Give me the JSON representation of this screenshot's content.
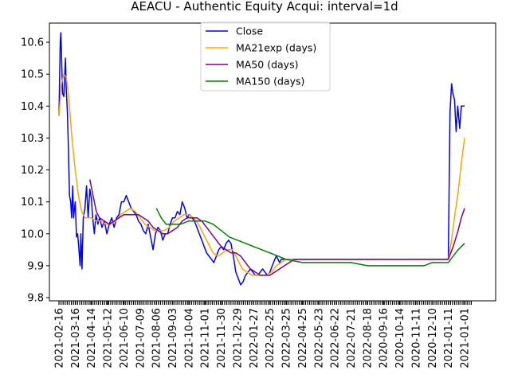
{
  "chart_data": {
    "type": "line",
    "title": "AEACU - Authentic Equity Acqui: interval=1d",
    "xlabel": "",
    "ylabel": "",
    "ylim": [
      9.79,
      10.66
    ],
    "yticks": [
      "9.8",
      "9.9",
      "10.0",
      "10.1",
      "10.2",
      "10.3",
      "10.4",
      "10.5",
      "10.6"
    ],
    "xtick_labels": [
      "2021-02-16",
      "2021-03-16",
      "2021-04-14",
      "2021-05-12",
      "2021-06-10",
      "2021-07-09",
      "2021-08-06",
      "2021-09-03",
      "2021-10-04",
      "2021-11-01",
      "2021-11-30",
      "2021-12-29",
      "2022-01-27",
      "2022-02-25",
      "2022-03-25",
      "2022-04-25",
      "2022-05-23",
      "2022-06-22",
      "2022-07-21",
      "2022-08-18",
      "2020-09-16",
      "2020-10-14",
      "2020-11-11",
      "2020-12-10",
      "2021-01-11",
      "2021-01-01"
    ],
    "x_index_range": [
      0,
      26.1
    ],
    "grid": false,
    "legend_position": "upper-center",
    "series": [
      {
        "name": "Close",
        "color": "#0000ff",
        "points": [
          [
            0,
            10.37
          ],
          [
            0.08,
            10.6
          ],
          [
            0.12,
            10.63
          ],
          [
            0.16,
            10.55
          ],
          [
            0.22,
            10.44
          ],
          [
            0.3,
            10.43
          ],
          [
            0.36,
            10.5
          ],
          [
            0.4,
            10.55
          ],
          [
            0.45,
            10.45
          ],
          [
            0.52,
            10.38
          ],
          [
            0.58,
            10.27
          ],
          [
            0.65,
            10.12
          ],
          [
            0.72,
            10.1
          ],
          [
            0.78,
            10.05
          ],
          [
            0.85,
            10.15
          ],
          [
            0.9,
            10.05
          ],
          [
            1.0,
            10.1
          ],
          [
            1.08,
            9.99
          ],
          [
            1.15,
            10.0
          ],
          [
            1.22,
            9.96
          ],
          [
            1.3,
            9.9
          ],
          [
            1.35,
            10.0
          ],
          [
            1.42,
            9.89
          ],
          [
            1.5,
            10.05
          ],
          [
            1.6,
            10.08
          ],
          [
            1.7,
            10.15
          ],
          [
            1.8,
            10.05
          ],
          [
            1.9,
            10.14
          ],
          [
            2.0,
            10.11
          ],
          [
            2.08,
            10.05
          ],
          [
            2.18,
            10.0
          ],
          [
            2.28,
            10.06
          ],
          [
            2.4,
            10.03
          ],
          [
            2.5,
            10.05
          ],
          [
            2.65,
            10.02
          ],
          [
            2.8,
            10.04
          ],
          [
            2.95,
            10.0
          ],
          [
            3.1,
            10.03
          ],
          [
            3.25,
            10.05
          ],
          [
            3.4,
            10.02
          ],
          [
            3.55,
            10.05
          ],
          [
            3.7,
            10.06
          ],
          [
            3.85,
            10.1
          ],
          [
            4.0,
            10.1
          ],
          [
            4.15,
            10.12
          ],
          [
            4.3,
            10.1
          ],
          [
            4.45,
            10.08
          ],
          [
            4.6,
            10.07
          ],
          [
            4.75,
            10.06
          ],
          [
            4.9,
            10.04
          ],
          [
            5.05,
            10.03
          ],
          [
            5.2,
            10.01
          ],
          [
            5.35,
            10.0
          ],
          [
            5.5,
            10.03
          ],
          [
            5.65,
            9.99
          ],
          [
            5.8,
            9.95
          ],
          [
            5.95,
            10.0
          ],
          [
            6.1,
            10.02
          ],
          [
            6.25,
            10.01
          ],
          [
            6.4,
            9.98
          ],
          [
            6.55,
            10.0
          ],
          [
            6.7,
            10.0
          ],
          [
            6.85,
            10.03
          ],
          [
            7.0,
            10.05
          ],
          [
            7.15,
            10.05
          ],
          [
            7.3,
            10.07
          ],
          [
            7.45,
            10.06
          ],
          [
            7.6,
            10.1
          ],
          [
            7.75,
            10.08
          ],
          [
            7.9,
            10.05
          ],
          [
            8.05,
            10.06
          ],
          [
            8.2,
            10.05
          ],
          [
            8.35,
            10.04
          ],
          [
            8.5,
            10.02
          ],
          [
            8.65,
            10.0
          ],
          [
            8.8,
            9.98
          ],
          [
            8.95,
            9.96
          ],
          [
            9.1,
            9.94
          ],
          [
            9.25,
            9.93
          ],
          [
            9.4,
            9.92
          ],
          [
            9.55,
            9.91
          ],
          [
            9.7,
            9.93
          ],
          [
            9.85,
            9.95
          ],
          [
            10.0,
            9.96
          ],
          [
            10.15,
            9.95
          ],
          [
            10.3,
            9.97
          ],
          [
            10.45,
            9.98
          ],
          [
            10.6,
            9.97
          ],
          [
            10.75,
            9.93
          ],
          [
            10.9,
            9.88
          ],
          [
            11.05,
            9.86
          ],
          [
            11.2,
            9.84
          ],
          [
            11.35,
            9.85
          ],
          [
            11.5,
            9.87
          ],
          [
            11.65,
            9.88
          ],
          [
            11.8,
            9.89
          ],
          [
            11.95,
            9.88
          ],
          [
            12.1,
            9.87
          ],
          [
            12.25,
            9.87
          ],
          [
            12.4,
            9.88
          ],
          [
            12.55,
            9.89
          ],
          [
            12.7,
            9.88
          ],
          [
            12.85,
            9.87
          ],
          [
            13.0,
            9.88
          ],
          [
            13.15,
            9.9
          ],
          [
            13.3,
            9.92
          ],
          [
            13.4,
            9.93
          ],
          [
            13.5,
            9.92
          ],
          [
            13.6,
            9.91
          ],
          [
            13.7,
            9.92
          ],
          [
            14.0,
            9.92
          ],
          [
            15.0,
            9.92
          ],
          [
            16.0,
            9.92
          ],
          [
            17.0,
            9.92
          ],
          [
            18.0,
            9.92
          ],
          [
            19.0,
            9.92
          ],
          [
            20.0,
            9.92
          ],
          [
            21.0,
            9.92
          ],
          [
            22.0,
            9.92
          ],
          [
            23.0,
            9.92
          ],
          [
            24.0,
            9.92
          ],
          [
            24.1,
            10.38
          ],
          [
            24.2,
            10.47
          ],
          [
            24.28,
            10.44
          ],
          [
            24.38,
            10.42
          ],
          [
            24.48,
            10.32
          ],
          [
            24.58,
            10.4
          ],
          [
            24.7,
            10.33
          ],
          [
            24.8,
            10.4
          ],
          [
            25.0,
            10.4
          ]
        ]
      },
      {
        "name": "MA21exp (days)",
        "color": "#ffa500",
        "points": [
          [
            0,
            10.37
          ],
          [
            0.15,
            10.47
          ],
          [
            0.3,
            10.5
          ],
          [
            0.45,
            10.49
          ],
          [
            0.6,
            10.43
          ],
          [
            0.8,
            10.3
          ],
          [
            1.0,
            10.2
          ],
          [
            1.2,
            10.12
          ],
          [
            1.4,
            10.07
          ],
          [
            1.6,
            10.05
          ],
          [
            1.8,
            10.05
          ],
          [
            2.0,
            10.05
          ],
          [
            2.3,
            10.04
          ],
          [
            2.6,
            10.04
          ],
          [
            2.9,
            10.03
          ],
          [
            3.2,
            10.03
          ],
          [
            3.5,
            10.04
          ],
          [
            3.8,
            10.06
          ],
          [
            4.1,
            10.07
          ],
          [
            4.4,
            10.08
          ],
          [
            4.7,
            10.07
          ],
          [
            5.0,
            10.05
          ],
          [
            5.3,
            10.03
          ],
          [
            5.6,
            10.02
          ],
          [
            5.9,
            10.01
          ],
          [
            6.2,
            10.01
          ],
          [
            6.5,
            10.01
          ],
          [
            6.8,
            10.02
          ],
          [
            7.1,
            10.04
          ],
          [
            7.4,
            10.05
          ],
          [
            7.7,
            10.06
          ],
          [
            8.0,
            10.06
          ],
          [
            8.3,
            10.05
          ],
          [
            8.6,
            10.03
          ],
          [
            8.9,
            10.0
          ],
          [
            9.2,
            9.97
          ],
          [
            9.5,
            9.94
          ],
          [
            9.8,
            9.93
          ],
          [
            10.1,
            9.94
          ],
          [
            10.4,
            9.95
          ],
          [
            10.7,
            9.95
          ],
          [
            11.0,
            9.92
          ],
          [
            11.3,
            9.89
          ],
          [
            11.6,
            9.88
          ],
          [
            11.9,
            9.87
          ],
          [
            12.2,
            9.87
          ],
          [
            12.5,
            9.87
          ],
          [
            12.8,
            9.87
          ],
          [
            13.1,
            9.88
          ],
          [
            13.4,
            9.9
          ],
          [
            13.7,
            9.91
          ],
          [
            14.0,
            9.92
          ],
          [
            15.0,
            9.92
          ],
          [
            16.0,
            9.92
          ],
          [
            17.0,
            9.92
          ],
          [
            18.0,
            9.92
          ],
          [
            19.0,
            9.92
          ],
          [
            20.0,
            9.92
          ],
          [
            21.0,
            9.92
          ],
          [
            22.0,
            9.92
          ],
          [
            23.0,
            9.92
          ],
          [
            24.0,
            9.92
          ],
          [
            24.2,
            9.98
          ],
          [
            24.4,
            10.06
          ],
          [
            24.6,
            10.13
          ],
          [
            24.8,
            10.22
          ],
          [
            25.0,
            10.3
          ]
        ]
      },
      {
        "name": "MA50 (days)",
        "color": "#800080",
        "points": [
          [
            1.9,
            10.17
          ],
          [
            2.1,
            10.12
          ],
          [
            2.3,
            10.07
          ],
          [
            2.5,
            10.05
          ],
          [
            2.8,
            10.04
          ],
          [
            3.1,
            10.03
          ],
          [
            3.4,
            10.04
          ],
          [
            3.7,
            10.05
          ],
          [
            4.0,
            10.06
          ],
          [
            4.3,
            10.06
          ],
          [
            4.6,
            10.06
          ],
          [
            4.9,
            10.06
          ],
          [
            5.2,
            10.05
          ],
          [
            5.5,
            10.04
          ],
          [
            5.8,
            10.02
          ],
          [
            6.1,
            10.01
          ],
          [
            6.4,
            10.0
          ],
          [
            6.7,
            10.0
          ],
          [
            7.0,
            10.01
          ],
          [
            7.3,
            10.02
          ],
          [
            7.6,
            10.04
          ],
          [
            7.9,
            10.05
          ],
          [
            8.2,
            10.05
          ],
          [
            8.5,
            10.05
          ],
          [
            8.8,
            10.04
          ],
          [
            9.1,
            10.02
          ],
          [
            9.4,
            10.0
          ],
          [
            9.7,
            9.98
          ],
          [
            10.0,
            9.96
          ],
          [
            10.3,
            9.95
          ],
          [
            10.6,
            9.94
          ],
          [
            10.9,
            9.94
          ],
          [
            11.2,
            9.93
          ],
          [
            11.5,
            9.91
          ],
          [
            11.8,
            9.89
          ],
          [
            12.1,
            9.88
          ],
          [
            12.4,
            9.87
          ],
          [
            12.7,
            9.87
          ],
          [
            13.0,
            9.87
          ],
          [
            13.3,
            9.88
          ],
          [
            13.6,
            9.89
          ],
          [
            13.9,
            9.9
          ],
          [
            14.2,
            9.91
          ],
          [
            14.5,
            9.92
          ],
          [
            15.0,
            9.92
          ],
          [
            16.0,
            9.92
          ],
          [
            17.0,
            9.92
          ],
          [
            18.0,
            9.92
          ],
          [
            19.0,
            9.92
          ],
          [
            20.0,
            9.92
          ],
          [
            21.0,
            9.92
          ],
          [
            22.0,
            9.92
          ],
          [
            23.0,
            9.92
          ],
          [
            24.0,
            9.92
          ],
          [
            24.3,
            9.96
          ],
          [
            24.6,
            10.01
          ],
          [
            24.8,
            10.05
          ],
          [
            25.0,
            10.08
          ]
        ]
      },
      {
        "name": "MA150 (days)",
        "color": "#008000",
        "points": [
          [
            6.0,
            10.08
          ],
          [
            6.3,
            10.05
          ],
          [
            6.6,
            10.03
          ],
          [
            7.0,
            10.03
          ],
          [
            7.5,
            10.03
          ],
          [
            8.0,
            10.04
          ],
          [
            8.5,
            10.04
          ],
          [
            9.0,
            10.04
          ],
          [
            9.5,
            10.03
          ],
          [
            10.0,
            10.01
          ],
          [
            10.5,
            9.99
          ],
          [
            11.0,
            9.98
          ],
          [
            11.5,
            9.97
          ],
          [
            12.0,
            9.96
          ],
          [
            12.5,
            9.95
          ],
          [
            13.0,
            9.94
          ],
          [
            13.5,
            9.93
          ],
          [
            14.0,
            9.92
          ],
          [
            15.0,
            9.91
          ],
          [
            16.0,
            9.91
          ],
          [
            17.0,
            9.91
          ],
          [
            18.0,
            9.91
          ],
          [
            19.0,
            9.9
          ],
          [
            20.0,
            9.9
          ],
          [
            21.0,
            9.9
          ],
          [
            22.0,
            9.9
          ],
          [
            22.5,
            9.9
          ],
          [
            23.0,
            9.91
          ],
          [
            24.0,
            9.91
          ],
          [
            24.3,
            9.93
          ],
          [
            24.6,
            9.95
          ],
          [
            25.0,
            9.97
          ]
        ]
      }
    ]
  }
}
